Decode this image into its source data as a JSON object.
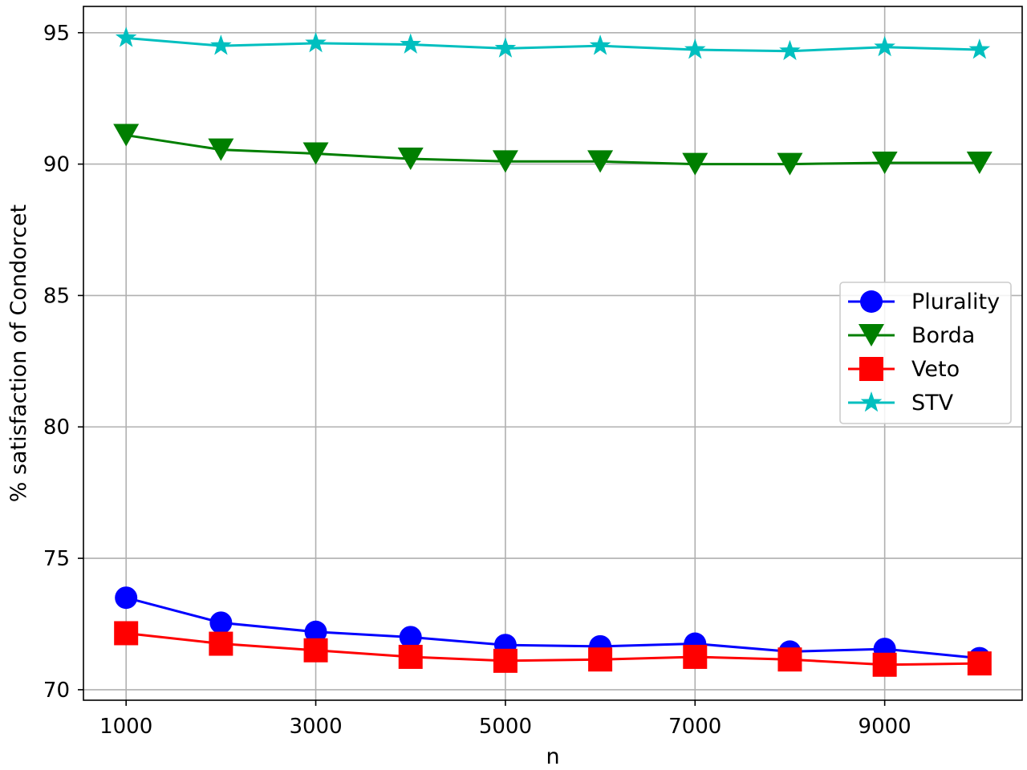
{
  "chart_data": {
    "type": "line",
    "title": "",
    "xlabel": "n",
    "ylabel": "% satisfaction of Condorcet",
    "x": [
      1000,
      2000,
      3000,
      4000,
      5000,
      6000,
      7000,
      8000,
      9000,
      10000
    ],
    "xlim": [
      550,
      10450
    ],
    "ylim": [
      69.6,
      96.0
    ],
    "xticks": [
      1000,
      3000,
      5000,
      7000,
      9000
    ],
    "yticks": [
      70,
      75,
      80,
      85,
      90,
      95
    ],
    "grid": true,
    "legend_position": "center-right",
    "series": [
      {
        "name": "Plurality",
        "color": "#0000ff",
        "marker": "circle",
        "values": [
          73.5,
          72.55,
          72.2,
          72.0,
          71.7,
          71.65,
          71.75,
          71.45,
          71.55,
          71.2
        ]
      },
      {
        "name": "Borda",
        "color": "#007f00",
        "marker": "triangle-down",
        "values": [
          91.1,
          90.55,
          90.4,
          90.2,
          90.1,
          90.1,
          90.0,
          90.0,
          90.05,
          90.05
        ]
      },
      {
        "name": "Veto",
        "color": "#ff0000",
        "marker": "square",
        "values": [
          72.15,
          71.75,
          71.5,
          71.25,
          71.1,
          71.15,
          71.25,
          71.15,
          70.95,
          71.0
        ]
      },
      {
        "name": "STV",
        "color": "#00bfbf",
        "marker": "star",
        "values": [
          94.8,
          94.5,
          94.6,
          94.55,
          94.4,
          94.5,
          94.35,
          94.3,
          94.45,
          94.35
        ]
      }
    ]
  }
}
